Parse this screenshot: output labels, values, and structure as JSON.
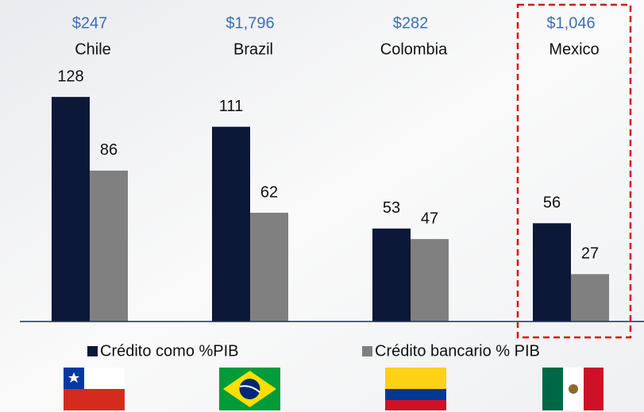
{
  "chart_data": {
    "type": "bar",
    "categories": [
      "Chile",
      "Brazil",
      "Colombia",
      "Mexico"
    ],
    "category_annotations": [
      "$247",
      "$1,796",
      "$282",
      "$1,046"
    ],
    "series": [
      {
        "name": "Crédito como %PIB",
        "color": "#0c1838",
        "values": [
          128,
          111,
          53,
          56
        ]
      },
      {
        "name": "Crédito bancario % PIB",
        "color": "#808080",
        "values": [
          86,
          62,
          47,
          27
        ]
      }
    ]
  }
}
